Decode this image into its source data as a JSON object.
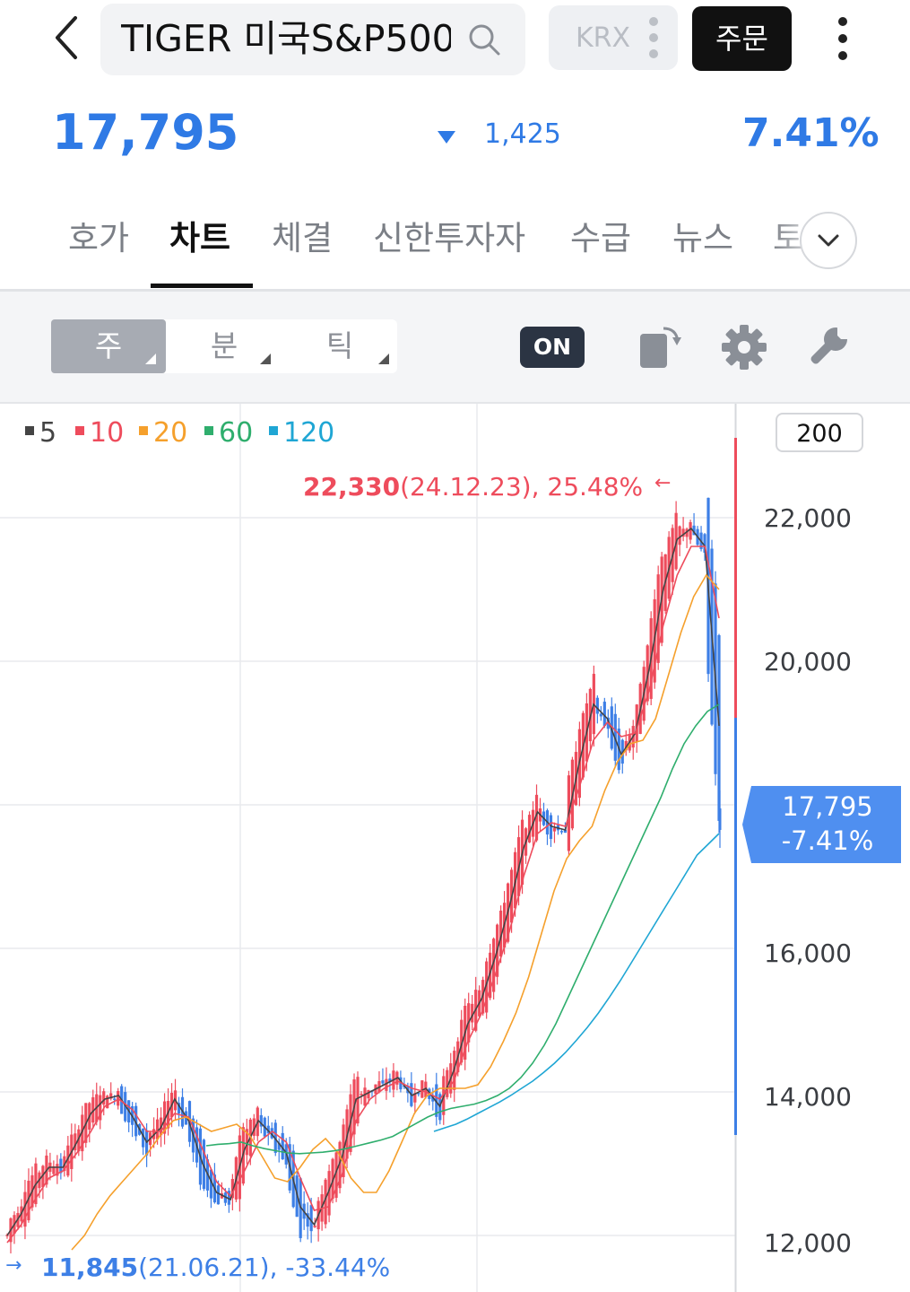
{
  "header": {
    "search_text": "TIGER 미국S&P500",
    "exchange": "KRX",
    "order_label": "주문"
  },
  "price": {
    "current": "17,795",
    "change": "1,425",
    "change_pct": "7.41%",
    "direction": "down",
    "color": "#2f7ae5"
  },
  "tabs": [
    "호가",
    "차트",
    "체결",
    "신한투자자",
    "수급",
    "뉴스",
    "토"
  ],
  "active_tab": "차트",
  "periods": [
    "주",
    "분",
    "틱"
  ],
  "selected_period": "주",
  "toolbar": {
    "on_label": "ON",
    "icons": [
      "rotate-icon",
      "gear-icon",
      "wrench-icon"
    ]
  },
  "chart_data": {
    "type": "line",
    "candle_type": "candlestick",
    "legend": [
      {
        "name": "5",
        "color": "#444444"
      },
      {
        "name": "10",
        "color": "#ee4c5c"
      },
      {
        "name": "20",
        "color": "#f5a02c"
      },
      {
        "name": "60",
        "color": "#2fae6d"
      },
      {
        "name": "120",
        "color": "#1fa6d4"
      }
    ],
    "candle_count": "200",
    "y_ticks": [
      "22,000",
      "20,000",
      "16,000",
      "14,000",
      "12,000"
    ],
    "ylim": [
      11600,
      23300
    ],
    "high": {
      "value": "22,330",
      "detail": "(24.12.23), 25.48%",
      "marker": "←"
    },
    "low": {
      "value": "11,845",
      "detail": "(21.06.21), -33.44%",
      "marker": "→"
    },
    "current": {
      "price": "17,795",
      "pct": "-7.41%",
      "color": "#4f8ff0"
    },
    "up_color": "#ee4c5c",
    "down_color": "#3d7fe6",
    "series": [
      {
        "name": "5",
        "values": [
          12000,
          12300,
          12700,
          12950,
          12950,
          13300,
          13700,
          13900,
          13950,
          13650,
          13300,
          13500,
          13900,
          13600,
          13000,
          12600,
          12500,
          13200,
          13600,
          13400,
          13150,
          12400,
          12150,
          12600,
          13100,
          13900,
          14000,
          14100,
          14200,
          13950,
          14050,
          13800,
          14300,
          14950,
          15300,
          15900,
          16600,
          17400,
          17900,
          17700,
          17650,
          18600,
          19400,
          19200,
          18700,
          19000,
          19900,
          21000,
          21700,
          21850,
          21600,
          19100
        ]
      },
      {
        "name": "10",
        "values": [
          11900,
          12150,
          12500,
          12800,
          12900,
          13150,
          13450,
          13800,
          13900,
          13750,
          13450,
          13450,
          13700,
          13650,
          13200,
          12750,
          12550,
          12900,
          13300,
          13450,
          13300,
          12800,
          12350,
          12400,
          12850,
          13600,
          13900,
          14050,
          14150,
          14050,
          14000,
          13900,
          14150,
          14700,
          15100,
          15650,
          16250,
          17000,
          17600,
          17750,
          17700,
          18250,
          18900,
          19150,
          18950,
          19000,
          19600,
          20500,
          21200,
          21600,
          21600,
          20600
        ]
      },
      {
        "name": "20",
        "values": [
          11800,
          12000,
          12300,
          12550,
          12750,
          12950,
          13150,
          13400,
          13600,
          13650,
          13550,
          13450,
          13500,
          13550,
          13400,
          13100,
          12800,
          12750,
          12950,
          13200,
          13350,
          13150,
          12800,
          12600,
          12600,
          12900,
          13300,
          13700,
          13950,
          14050,
          14050,
          14050,
          14100,
          14350,
          14700,
          15100,
          15600,
          16200,
          16800,
          17250,
          17500,
          17700,
          18200,
          18600,
          18850,
          18900,
          19200,
          19800,
          20400,
          20900,
          21200,
          21000
        ]
      },
      {
        "name": "60",
        "values": [
          13250,
          13270,
          13280,
          13300,
          13250,
          13210,
          13180,
          13150,
          13140,
          13150,
          13160,
          13180,
          13210,
          13250,
          13290,
          13330,
          13380,
          13470,
          13560,
          13650,
          13720,
          13770,
          13800,
          13830,
          13880,
          13950,
          14050,
          14200,
          14400,
          14650,
          14950,
          15300,
          15650,
          16000,
          16350,
          16700,
          17050,
          17400,
          17750,
          18100,
          18500,
          18850,
          19100,
          19300,
          19400
        ]
      },
      {
        "name": "120",
        "values": [
          13450,
          13500,
          13550,
          13620,
          13700,
          13780,
          13860,
          13950,
          14050,
          14150,
          14270,
          14400,
          14550,
          14720,
          14900,
          15100,
          15320,
          15550,
          15800,
          16050,
          16300,
          16550,
          16800,
          17050,
          17300,
          17450,
          17600
        ]
      }
    ]
  }
}
